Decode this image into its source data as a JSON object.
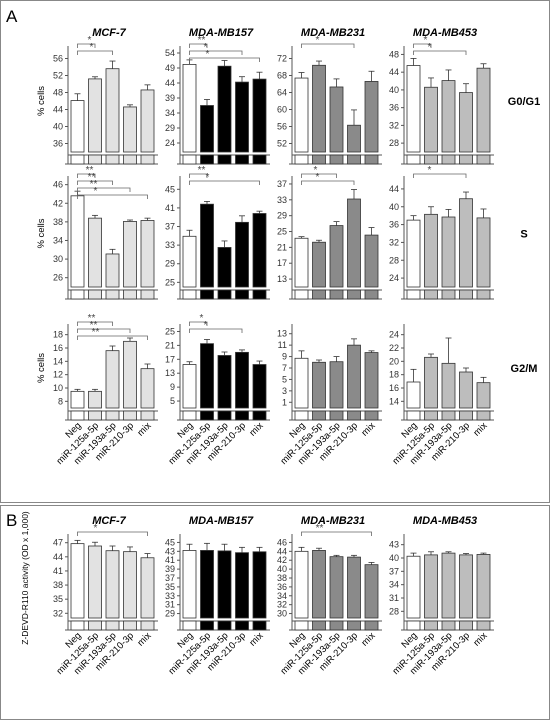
{
  "panels": {
    "A": {
      "letter": "A"
    },
    "B": {
      "letter": "B"
    }
  },
  "colors": {
    "Neg": "#ffffff",
    "MCF-7": "#e2e2e2",
    "MDA-MB157": "#000000",
    "MDA-MB231": "#8a8a8a",
    "MDA-MB453": "#bdbdbd",
    "frame": "#888888",
    "axis": "#555555"
  },
  "chart_data": [
    {
      "type": "bar",
      "panel": "A",
      "phase_labels": [
        "G0/G1",
        "S",
        "G2/M"
      ],
      "ylabel": "% cells",
      "cell_lines": [
        "MCF-7",
        "MDA-MB157",
        "MDA-MB231",
        "MDA-MB453"
      ],
      "categories": [
        "Neg",
        "miR-125a-5p",
        "miR-193a-5p",
        "miR-210-3p",
        "mix"
      ],
      "charts": [
        {
          "title": "MCF-7",
          "phase": "G0/G1",
          "yticks": [
            36,
            40,
            44,
            48,
            52,
            56
          ],
          "ylim": [
            34,
            58
          ],
          "values": [
            46.1,
            51.2,
            53.6,
            44.6,
            48.6
          ],
          "errors": [
            1.6,
            0.5,
            1.8,
            0.5,
            1.2
          ],
          "sig": [
            {
              "from": 0,
              "to": 1,
              "label": "*"
            },
            {
              "from": 0,
              "to": 2,
              "label": "*"
            }
          ]
        },
        {
          "title": "MDA-MB157",
          "phase": "G0/G1",
          "yticks": [
            24,
            29,
            34,
            39,
            44,
            49,
            54
          ],
          "ylim": [
            21,
            55
          ],
          "values": [
            50.2,
            36.5,
            49.6,
            44.3,
            45.3
          ],
          "errors": [
            1.5,
            2.0,
            1.9,
            1.8,
            2.3
          ],
          "sig": [
            {
              "from": 0,
              "to": 1,
              "label": "**"
            },
            {
              "from": 0,
              "to": 3,
              "label": "*"
            },
            {
              "from": 0,
              "to": 4,
              "label": "*"
            }
          ]
        },
        {
          "title": "MDA-MB231",
          "phase": "G0/G1",
          "yticks": [
            52,
            56,
            60,
            64,
            68,
            72
          ],
          "ylim": [
            50,
            74
          ],
          "values": [
            67.4,
            70.4,
            65.3,
            56.3,
            66.6
          ],
          "errors": [
            1.3,
            1.0,
            1.9,
            3.6,
            2.4
          ],
          "sig": [
            {
              "from": 0,
              "to": 3,
              "label": "*"
            }
          ]
        },
        {
          "title": "MDA-MB453",
          "phase": "G0/G1",
          "yticks": [
            28,
            32,
            36,
            40,
            44,
            48
          ],
          "ylim": [
            26,
            49
          ],
          "values": [
            45.5,
            40.6,
            42.1,
            39.4,
            44.9
          ],
          "errors": [
            1.6,
            2.1,
            2.4,
            2.0,
            1.0
          ],
          "sig": [
            {
              "from": 0,
              "to": 1,
              "label": "*"
            },
            {
              "from": 0,
              "to": 3,
              "label": "*"
            }
          ]
        },
        {
          "title": "",
          "phase": "S",
          "yticks": [
            26,
            30,
            34,
            38,
            42,
            46
          ],
          "ylim": [
            24,
            47
          ],
          "values": [
            43.6,
            38.8,
            31.1,
            38.1,
            38.3
          ],
          "errors": [
            1.0,
            0.6,
            1.0,
            0.3,
            0.5
          ],
          "sig": [
            {
              "from": 0,
              "to": 1,
              "label": "**"
            },
            {
              "from": 0,
              "to": 2,
              "label": "**"
            },
            {
              "from": 0,
              "to": 3,
              "label": "**"
            },
            {
              "from": 0,
              "to": 4,
              "label": "*"
            }
          ]
        },
        {
          "title": "",
          "phase": "S",
          "yticks": [
            25,
            29,
            33,
            37,
            41,
            45
          ],
          "ylim": [
            24,
            47
          ],
          "values": [
            34.9,
            41.8,
            32.5,
            37.9,
            39.8
          ],
          "errors": [
            1.3,
            0.6,
            1.4,
            1.4,
            0.5
          ],
          "sig": [
            {
              "from": 0,
              "to": 1,
              "label": "**"
            },
            {
              "from": 0,
              "to": 4,
              "label": "*"
            }
          ]
        },
        {
          "title": "",
          "phase": "S",
          "yticks": [
            13,
            17,
            21,
            25,
            29,
            33,
            37
          ],
          "ylim": [
            11,
            38
          ],
          "values": [
            23.3,
            22.3,
            26.5,
            33.2,
            24.1
          ],
          "errors": [
            0.4,
            0.5,
            1.0,
            2.4,
            1.9
          ],
          "sig": [
            {
              "from": 0,
              "to": 2,
              "label": "*"
            },
            {
              "from": 0,
              "to": 3,
              "label": "*"
            }
          ]
        },
        {
          "title": "",
          "phase": "S",
          "yticks": [
            24,
            28,
            32,
            36,
            40,
            44
          ],
          "ylim": [
            22,
            46
          ],
          "values": [
            37.0,
            38.3,
            37.7,
            41.8,
            37.5
          ],
          "errors": [
            1.0,
            1.7,
            1.7,
            1.5,
            2.0
          ],
          "sig": [
            {
              "from": 0,
              "to": 3,
              "label": "*"
            }
          ]
        },
        {
          "title": "",
          "phase": "G2/M",
          "yticks": [
            8,
            10,
            12,
            14,
            16,
            18
          ],
          "ylim": [
            7,
            19
          ],
          "values": [
            9.5,
            9.5,
            15.6,
            17.0,
            12.9
          ],
          "errors": [
            0.3,
            0.3,
            0.7,
            0.5,
            0.7
          ],
          "sig": [
            {
              "from": 0,
              "to": 2,
              "label": "**"
            },
            {
              "from": 0,
              "to": 3,
              "label": "**"
            },
            {
              "from": 0,
              "to": 4,
              "label": "**"
            }
          ]
        },
        {
          "title": "",
          "phase": "G2/M",
          "yticks": [
            5,
            9,
            13,
            17,
            21,
            25
          ],
          "ylim": [
            3,
            26
          ],
          "values": [
            15.5,
            21.5,
            18.1,
            19.0,
            15.5
          ],
          "errors": [
            0.8,
            1.2,
            1.0,
            0.7,
            1.0
          ],
          "sig": [
            {
              "from": 0,
              "to": 1,
              "label": "*"
            },
            {
              "from": 0,
              "to": 3,
              "label": "*"
            }
          ]
        },
        {
          "title": "",
          "phase": "G2/M",
          "yticks": [
            1,
            3,
            5,
            7,
            9,
            11,
            13
          ],
          "ylim": [
            0,
            14
          ],
          "values": [
            8.7,
            8.0,
            8.1,
            11.0,
            9.7
          ],
          "errors": [
            1.3,
            0.4,
            0.9,
            1.1,
            0.3
          ],
          "sig": []
        },
        {
          "title": "",
          "phase": "G2/M",
          "yticks": [
            14,
            16,
            18,
            20,
            22,
            24
          ],
          "ylim": [
            13,
            25
          ],
          "values": [
            16.9,
            20.6,
            19.7,
            18.4,
            16.8
          ],
          "errors": [
            1.9,
            0.5,
            3.8,
            0.6,
            0.8
          ],
          "sig": []
        }
      ]
    },
    {
      "type": "bar",
      "panel": "B",
      "ylabel": "Z-DEVD-R110 activity (OD x 1,000)",
      "categories": [
        "Neg",
        "miR-125a-5p",
        "miR-193a-5p",
        "miR-210-3p",
        "mix"
      ],
      "charts": [
        {
          "title": "MCF-7",
          "yticks": [
            32,
            35,
            38,
            41,
            44,
            47
          ],
          "ylim": [
            31,
            48
          ],
          "values": [
            46.8,
            46.3,
            45.3,
            45.1,
            43.8
          ],
          "errors": [
            0.7,
            0.8,
            1.0,
            1.0,
            0.9
          ],
          "sig": [
            {
              "from": 0,
              "to": 4,
              "label": "*"
            }
          ]
        },
        {
          "title": "MDA-MB157",
          "yticks": [
            29,
            31,
            33,
            35,
            37,
            39,
            41,
            43,
            45
          ],
          "ylim": [
            28,
            46
          ],
          "values": [
            43.2,
            43.2,
            43.1,
            42.7,
            42.9
          ],
          "errors": [
            1.4,
            1.6,
            1.5,
            1.2,
            1.0
          ],
          "sig": []
        },
        {
          "title": "MDA-MB231",
          "yticks": [
            30,
            32,
            34,
            36,
            38,
            40,
            42,
            44,
            46
          ],
          "ylim": [
            29,
            47
          ],
          "values": [
            44.0,
            44.2,
            42.8,
            42.7,
            41.0
          ],
          "errors": [
            0.9,
            0.5,
            0.3,
            0.4,
            0.5
          ],
          "sig": [
            {
              "from": 0,
              "to": 4,
              "label": "**"
            }
          ]
        },
        {
          "title": "MDA-MB453",
          "yticks": [
            28,
            31,
            34,
            37,
            40,
            43
          ],
          "ylim": [
            26.5,
            44.5
          ],
          "values": [
            40.4,
            40.7,
            41.1,
            40.7,
            40.8
          ],
          "errors": [
            0.7,
            0.7,
            0.3,
            0.3,
            0.3
          ],
          "sig": []
        }
      ]
    }
  ]
}
